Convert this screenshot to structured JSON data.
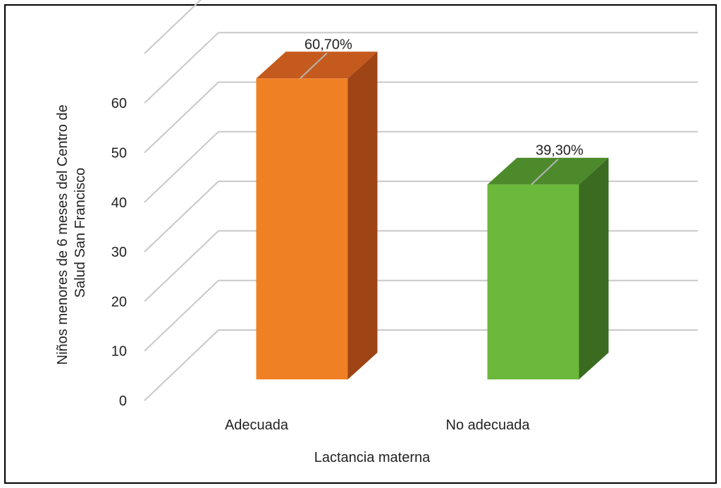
{
  "chart_data": {
    "type": "bar",
    "three_d": true,
    "categories": [
      "Adecuada",
      "No adecuada"
    ],
    "values": [
      60.7,
      39.3
    ],
    "data_labels": [
      "60,70%",
      "39,30%"
    ],
    "xlabel": "Lactancia materna",
    "ylabel_lines": [
      "Niños menores de 6 meses del Centro de",
      "Salud San Francisco"
    ],
    "ylim": [
      0,
      70
    ],
    "yticks": [
      0,
      10,
      20,
      30,
      40,
      50,
      60
    ],
    "grid": true,
    "legend": "none",
    "colors": {
      "Adecuada": {
        "front": "#F08024",
        "side": "#9E4415",
        "top": "#C55A1E"
      },
      "No adecuada": {
        "front": "#6BB83A",
        "side": "#3A6B20",
        "top": "#4C8A2B"
      }
    }
  }
}
